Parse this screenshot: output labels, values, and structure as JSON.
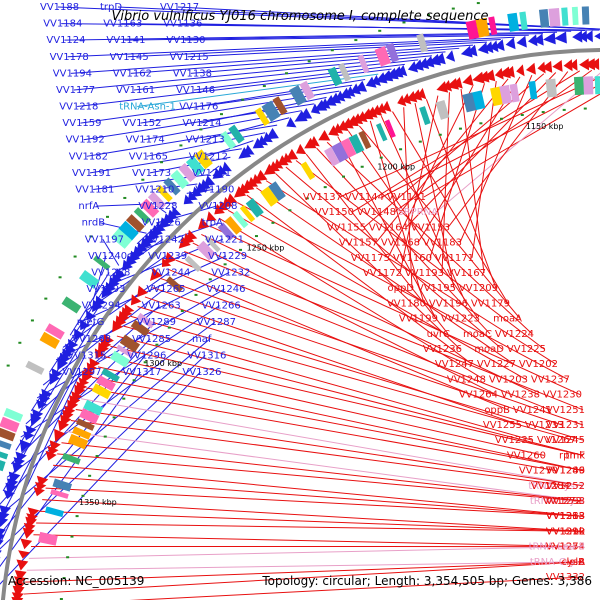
{
  "title": "Vibrio vulnificus YJ016 chromosome I, complete sequence",
  "accession_text": "Accession: NC_005139",
  "summary_text": "Topology: circular; Length: 3,354,505 bp; Genes: 3,386",
  "colors": {
    "plus": "#1f1fe0",
    "minus": "#e81010",
    "trna_plus": "#2aa8d8",
    "trna_minus": "#e8a0c8",
    "backbone": "#888888",
    "tick_mark": "#228b22"
  },
  "ticks": [
    {
      "label": "1150 kbp",
      "kbp": 1150
    },
    {
      "label": "1200 kbp",
      "kbp": 1200
    },
    {
      "label": "1250 kbp",
      "kbp": 1250
    },
    {
      "label": "1300 kbp",
      "kbp": 1300
    },
    {
      "label": "1350 kbp",
      "kbp": 1350
    }
  ],
  "plus_labels": [
    {
      "text": "VV1188",
      "type": "gene"
    },
    {
      "text": "trpD",
      "type": "gene"
    },
    {
      "text": "VV1217",
      "type": "gene"
    },
    {
      "text": "VV1184",
      "type": "gene"
    },
    {
      "text": "VV1163",
      "type": "gene"
    },
    {
      "text": "VV1136",
      "type": "gene"
    },
    {
      "text": "VV1124",
      "type": "gene"
    },
    {
      "text": "VV1141",
      "type": "gene"
    },
    {
      "text": "VV1130",
      "type": "gene"
    },
    {
      "text": "VV1178",
      "type": "gene"
    },
    {
      "text": "VV1145",
      "type": "gene"
    },
    {
      "text": "VV1215",
      "type": "gene"
    },
    {
      "text": "VV1194",
      "type": "gene"
    },
    {
      "text": "VV1162",
      "type": "gene"
    },
    {
      "text": "VV1138",
      "type": "gene"
    },
    {
      "text": "VV1177",
      "type": "gene"
    },
    {
      "text": "VV1161",
      "type": "gene"
    },
    {
      "text": "VV1146",
      "type": "gene"
    },
    {
      "text": "VV1218",
      "type": "gene"
    },
    {
      "text": "tRNA-Asn-1",
      "type": "trna"
    },
    {
      "text": "VV1176",
      "type": "gene"
    },
    {
      "text": "VV1159",
      "type": "gene"
    },
    {
      "text": "VV1152",
      "type": "gene"
    },
    {
      "text": "VV1214",
      "type": "gene"
    },
    {
      "text": "VV1192",
      "type": "gene"
    },
    {
      "text": "VV1174",
      "type": "gene"
    },
    {
      "text": "VV1213",
      "type": "gene"
    },
    {
      "text": "VV1182",
      "type": "gene"
    },
    {
      "text": "VV1165",
      "type": "gene"
    },
    {
      "text": "VV1212",
      "type": "gene"
    },
    {
      "text": "VV1191",
      "type": "gene"
    },
    {
      "text": "VV1173",
      "type": "gene"
    },
    {
      "text": "VV1211",
      "type": "gene"
    },
    {
      "text": "VV1181",
      "type": "gene"
    },
    {
      "text": "VV1210",
      "type": "gene"
    },
    {
      "text": "VV1190",
      "type": "gene"
    },
    {
      "text": "nrfA",
      "type": "gene"
    },
    {
      "text": "VV1228",
      "type": "gene"
    },
    {
      "text": "VV1208",
      "type": "gene"
    },
    {
      "text": "nrdB",
      "type": "gene"
    },
    {
      "text": "VV1226",
      "type": "gene"
    },
    {
      "text": "trpA",
      "type": "gene"
    },
    {
      "text": "VV1197",
      "type": "gene"
    },
    {
      "text": "VV1242",
      "type": "gene"
    },
    {
      "text": "VV1221",
      "type": "gene"
    },
    {
      "text": "VV1240",
      "type": "gene"
    },
    {
      "text": "VV1239",
      "type": "gene"
    },
    {
      "text": "VV1229",
      "type": "gene"
    },
    {
      "text": "VV1258",
      "type": "gene"
    },
    {
      "text": "VV1244",
      "type": "gene"
    },
    {
      "text": "VV1232",
      "type": "gene"
    },
    {
      "text": "VV1293",
      "type": "gene"
    },
    {
      "text": "VV1265",
      "type": "gene"
    },
    {
      "text": "VV1246",
      "type": "gene"
    },
    {
      "text": "VV1294",
      "type": "gene"
    },
    {
      "text": "VV1263",
      "type": "gene"
    },
    {
      "text": "VV1266",
      "type": "gene"
    },
    {
      "text": "metG",
      "type": "gene"
    },
    {
      "text": "VV1289",
      "type": "gene"
    },
    {
      "text": "VV1287",
      "type": "gene"
    },
    {
      "text": "VV1268",
      "type": "gene"
    },
    {
      "text": "VV1285",
      "type": "gene"
    },
    {
      "text": "maf",
      "type": "gene"
    },
    {
      "text": "VV1315",
      "type": "gene"
    },
    {
      "text": "VV1296",
      "type": "gene"
    },
    {
      "text": "VV1316",
      "type": "gene"
    },
    {
      "text": "VV1297",
      "type": "gene"
    },
    {
      "text": "VV1317",
      "type": "gene"
    },
    {
      "text": "VV1326",
      "type": "gene"
    }
  ],
  "minus_labels": [
    {
      "text": "VV1131",
      "type": "gene"
    },
    {
      "text": "VV1144",
      "type": "gene"
    },
    {
      "text": "VV1137",
      "type": "gene"
    },
    {
      "text": "SRPRNA",
      "type": "trna"
    },
    {
      "text": "VV1148",
      "type": "gene"
    },
    {
      "text": "VV1150",
      "type": "gene"
    },
    {
      "text": "VV1153",
      "type": "gene"
    },
    {
      "text": "VV1164",
      "type": "gene"
    },
    {
      "text": "VV1155",
      "type": "gene"
    },
    {
      "text": "VV1183",
      "type": "gene"
    },
    {
      "text": "VV1168",
      "type": "gene"
    },
    {
      "text": "VV1157",
      "type": "gene"
    },
    {
      "text": "VV1171",
      "type": "gene"
    },
    {
      "text": "VV1160",
      "type": "gene"
    },
    {
      "text": "VV1175",
      "type": "gene"
    },
    {
      "text": "VV1167",
      "type": "gene"
    },
    {
      "text": "VV1193",
      "type": "gene"
    },
    {
      "text": "VV1172",
      "type": "gene"
    },
    {
      "text": "VV1209",
      "type": "gene"
    },
    {
      "text": "VV1195",
      "type": "gene"
    },
    {
      "text": "oppD",
      "type": "gene"
    },
    {
      "text": "VV1179",
      "type": "gene"
    },
    {
      "text": "VV1196",
      "type": "gene"
    },
    {
      "text": "VV1180",
      "type": "gene"
    },
    {
      "text": "moaA",
      "type": "gene"
    },
    {
      "text": "VV1223",
      "type": "gene"
    },
    {
      "text": "VV1199",
      "type": "gene"
    },
    {
      "text": "VV1224",
      "type": "gene"
    },
    {
      "text": "moaC",
      "type": "gene"
    },
    {
      "text": "uvrC",
      "type": "gene"
    },
    {
      "text": "VV1225",
      "type": "gene"
    },
    {
      "text": "moaD",
      "type": "gene"
    },
    {
      "text": "VV1236",
      "type": "gene"
    },
    {
      "text": "VV1202",
      "type": "gene"
    },
    {
      "text": "VV1227",
      "type": "gene"
    },
    {
      "text": "VV1247",
      "type": "gene"
    },
    {
      "text": "VV1237",
      "type": "gene"
    },
    {
      "text": "VV1203",
      "type": "gene"
    },
    {
      "text": "VV1248",
      "type": "gene"
    },
    {
      "text": "VV1230",
      "type": "gene"
    },
    {
      "text": "VV1238",
      "type": "gene"
    },
    {
      "text": "VV1264",
      "type": "gene"
    },
    {
      "text": "VV1251",
      "type": "gene"
    },
    {
      "text": "VV1241",
      "type": "gene"
    },
    {
      "text": "oppB",
      "type": "gene"
    },
    {
      "text": "VV1231",
      "type": "gene"
    },
    {
      "text": "VV1233",
      "type": "gene"
    },
    {
      "text": "VV1255",
      "type": "gene"
    },
    {
      "text": "VV1245",
      "type": "gene"
    },
    {
      "text": "VV1267",
      "type": "gene"
    },
    {
      "text": "VV1235",
      "type": "gene"
    },
    {
      "text": "tmk",
      "type": "gene"
    },
    {
      "text": "rpmF",
      "type": "gene"
    },
    {
      "text": "VV1260",
      "type": "gene"
    },
    {
      "text": "VV1249",
      "type": "gene"
    },
    {
      "text": "VV1286",
      "type": "gene"
    },
    {
      "text": "VV1270",
      "type": "gene"
    },
    {
      "text": "tRNA-Cys-1",
      "type": "trna"
    },
    {
      "text": "VV1252",
      "type": "gene"
    },
    {
      "text": "VV1284",
      "type": "gene"
    },
    {
      "text": "tRNA-Gly-1",
      "type": "trna"
    },
    {
      "text": "VV1298",
      "type": "gene"
    },
    {
      "text": "VV1272",
      "type": "gene"
    },
    {
      "text": "VV1313",
      "type": "gene"
    },
    {
      "text": "VV1288",
      "type": "gene"
    },
    {
      "text": "VV1253",
      "type": "gene"
    },
    {
      "text": "VV1312",
      "type": "gene"
    },
    {
      "text": "cmk",
      "type": "gene"
    },
    {
      "text": "VV1290",
      "type": "gene"
    },
    {
      "text": "VV1273",
      "type": "gene"
    },
    {
      "text": "VV1254",
      "type": "gene"
    },
    {
      "text": "tRNA-Leu-8",
      "type": "trna"
    },
    {
      "text": "tRNA-Gly-2",
      "type": "trna"
    },
    {
      "text": "lolA",
      "type": "gene"
    },
    {
      "text": "cysB",
      "type": "gene"
    },
    {
      "text": "VV1332",
      "type": "gene"
    }
  ]
}
